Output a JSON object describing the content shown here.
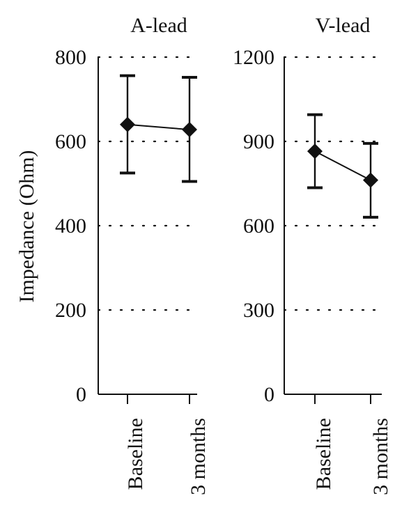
{
  "chart_data": [
    {
      "type": "line",
      "title": "A-lead",
      "ylabel": "Impedance (Ohm)",
      "categories": [
        "Baseline",
        "3 months"
      ],
      "yticks": [
        "0",
        "200",
        "400",
        "600",
        "800"
      ],
      "ylim": [
        0,
        800
      ],
      "grid": true,
      "series": [
        {
          "values": [
            640,
            628
          ],
          "error_low": [
            525,
            505
          ],
          "error_high": [
            756,
            752
          ]
        }
      ]
    },
    {
      "type": "line",
      "title": "V-lead",
      "ylabel": "",
      "categories": [
        "Baseline",
        "3 months"
      ],
      "yticks": [
        "0",
        "300",
        "600",
        "900",
        "1200"
      ],
      "ylim": [
        0,
        1200
      ],
      "grid": true,
      "series": [
        {
          "values": [
            865,
            762
          ],
          "error_low": [
            735,
            630
          ],
          "error_high": [
            995,
            893
          ]
        }
      ]
    }
  ],
  "colors": {
    "ink": "#111111",
    "background": "#ffffff"
  }
}
